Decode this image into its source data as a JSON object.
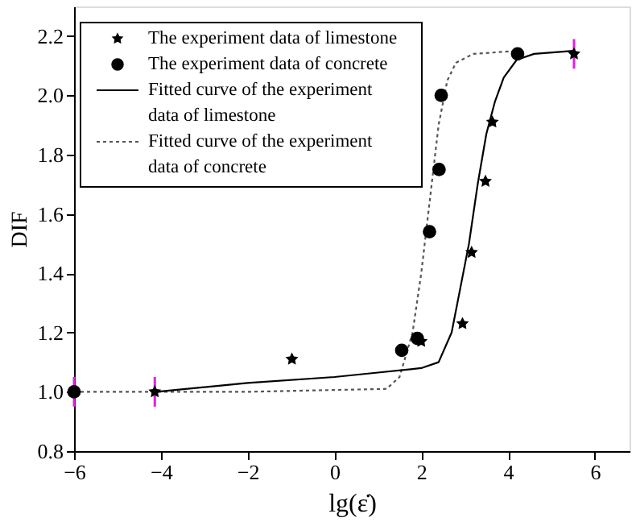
{
  "chart_data": {
    "type": "scatter",
    "xlabel": "lg(ε̇)",
    "ylabel": "DIF",
    "xlim": [
      -6,
      6.8
    ],
    "ylim": [
      0.8,
      2.3
    ],
    "xticks": [
      -6,
      -4,
      -2,
      0,
      2,
      4,
      6
    ],
    "yticks": [
      0.8,
      {
        "value": 1.0,
        "label": "1.0"
      },
      1.2,
      1.4,
      1.6,
      1.8,
      {
        "value": 2.0,
        "label": "2.0"
      },
      2.2
    ],
    "grid": false,
    "legend": "top left",
    "series": [
      {
        "name": "The experiment data of limestone",
        "type": "scatter",
        "marker": "star",
        "color": "#000000",
        "x": [
          -4.14,
          -0.98,
          2.0,
          2.95,
          3.16,
          3.48,
          3.64,
          5.52
        ],
        "values": [
          1.0,
          1.11,
          1.17,
          1.23,
          1.47,
          1.71,
          1.91,
          2.14
        ],
        "errors": [
          0.05,
          null,
          null,
          null,
          null,
          null,
          null,
          0.05
        ]
      },
      {
        "name": "The experiment data of concrete",
        "type": "scatter",
        "marker": "circle",
        "color": "#000000",
        "x": [
          -6,
          1.55,
          1.91,
          2.19,
          2.41,
          2.46,
          4.22
        ],
        "values": [
          1.0,
          1.14,
          1.18,
          1.54,
          1.75,
          2.0,
          2.14
        ],
        "errors": [
          0.05,
          null,
          null,
          null,
          null,
          null,
          null
        ]
      },
      {
        "name": "Fitted curve of the experiment data of limestone",
        "type": "line",
        "line_style": "solid",
        "color": "#000000",
        "x": [
          -4.1,
          -2,
          0,
          1,
          2,
          2.4,
          2.7,
          2.9,
          3.1,
          3.3,
          3.5,
          3.7,
          3.9,
          4.2,
          4.6,
          5.5
        ],
        "values": [
          1.0,
          1.03,
          1.05,
          1.065,
          1.08,
          1.1,
          1.2,
          1.35,
          1.5,
          1.7,
          1.87,
          1.98,
          2.06,
          2.12,
          2.14,
          2.15
        ]
      },
      {
        "name": "Fitted curve of the experiment data of concrete",
        "type": "line",
        "line_style": "dotted",
        "color": "#555555",
        "x": [
          -6,
          -2,
          1.2,
          1.5,
          1.8,
          2.0,
          2.2,
          2.4,
          2.6,
          2.8,
          3.2,
          4.2
        ],
        "values": [
          1.0,
          1.0,
          1.01,
          1.05,
          1.2,
          1.4,
          1.65,
          1.9,
          2.05,
          2.11,
          2.14,
          2.15
        ]
      }
    ]
  }
}
